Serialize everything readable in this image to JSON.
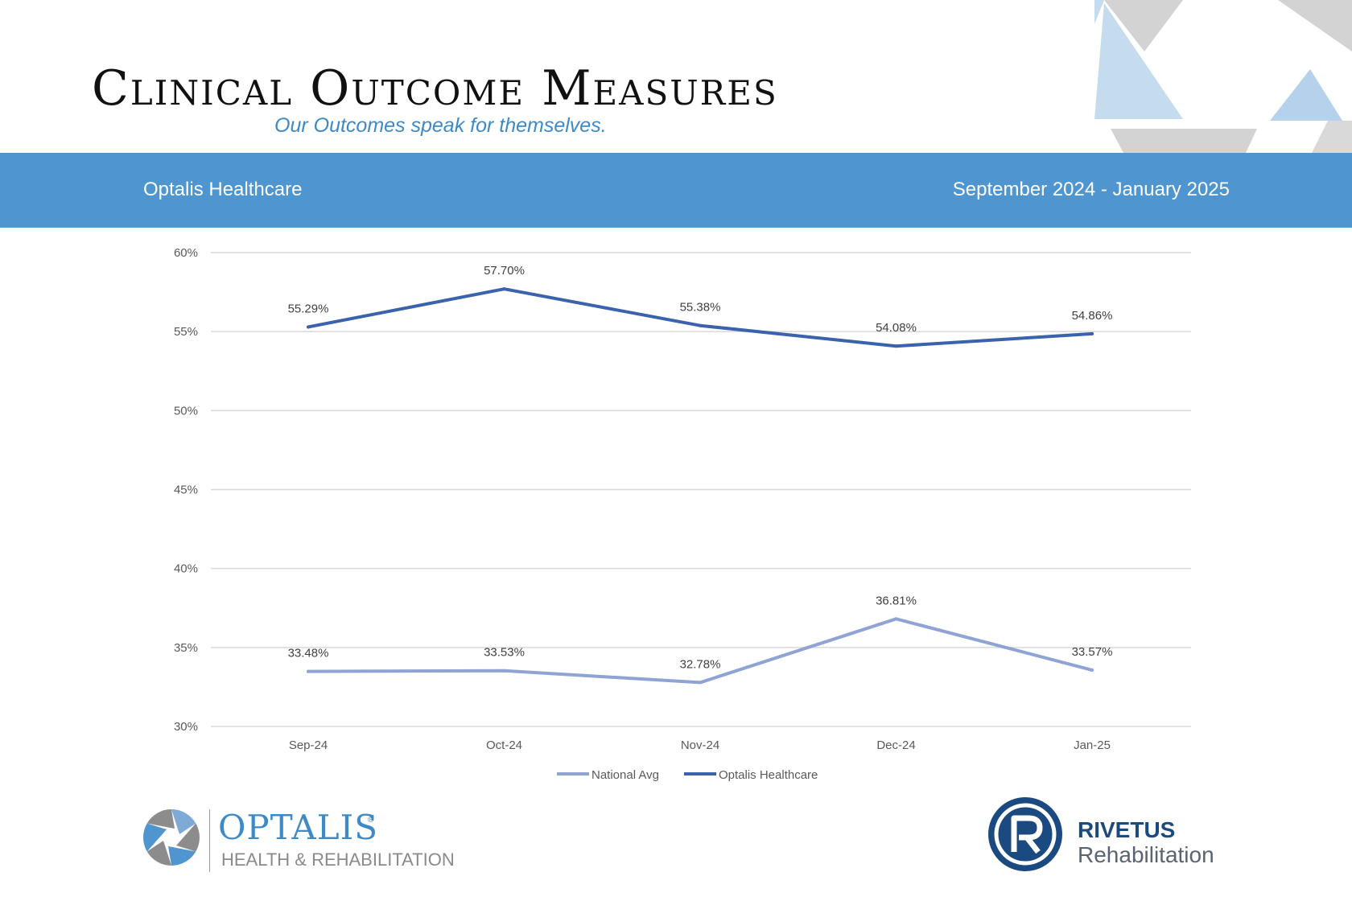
{
  "header": {
    "title": "Clinical Outcome Measures",
    "subtitle": "Our Outcomes speak for themselves."
  },
  "band": {
    "facility": "Optalis Healthcare",
    "period": "September 2024 - January 2025"
  },
  "chart_data": {
    "type": "line",
    "categories": [
      "Sep-24",
      "Oct-24",
      "Nov-24",
      "Dec-24",
      "Jan-25"
    ],
    "series": [
      {
        "name": "National Avg",
        "values": [
          33.48,
          33.53,
          32.78,
          36.81,
          33.57
        ],
        "labels": [
          "33.48%",
          "33.53%",
          "32.78%",
          "36.81%",
          "33.57%"
        ],
        "color": "#8fa3d4"
      },
      {
        "name": "Optalis Healthcare",
        "values": [
          55.29,
          57.7,
          55.38,
          54.08,
          54.86
        ],
        "labels": [
          "55.29%",
          "57.70%",
          "55.38%",
          "54.08%",
          "54.86%"
        ],
        "color": "#3b62ad"
      }
    ],
    "ylim": [
      30,
      60
    ],
    "yticks": [
      "60%",
      "55%",
      "50%",
      "45%",
      "40%",
      "35%",
      "30%"
    ],
    "grid": true,
    "legend_position": "bottom"
  },
  "footer": {
    "left_logo": {
      "name": "OPTALIS",
      "registered": "®",
      "tagline": "HEALTH & REHABILITATION",
      "icon": "aperture-icon"
    },
    "right_logo": {
      "name": "RIVETUS",
      "tagline": "Rehabilitation",
      "icon": "r-circle-icon"
    }
  },
  "colors": {
    "accent": "#4f95d0",
    "subtitle": "#3d8ac7",
    "grid": "#d9d9d9"
  }
}
